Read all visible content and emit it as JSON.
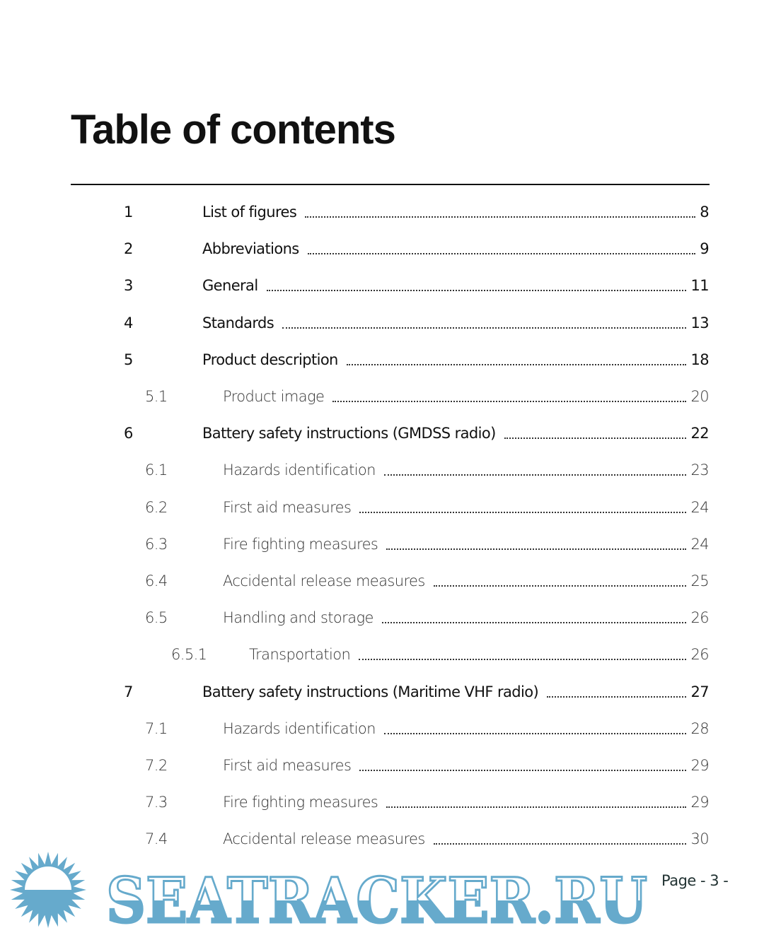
{
  "heading": "Table of contents",
  "entries": [
    {
      "num": "1",
      "title": "List of figures",
      "page": "8",
      "level": 1
    },
    {
      "num": "2",
      "title": "Abbreviations",
      "page": "9",
      "level": 1
    },
    {
      "num": "3",
      "title": "General",
      "page": "11",
      "level": 1
    },
    {
      "num": "4",
      "title": "Standards",
      "page": "13",
      "level": 1
    },
    {
      "num": "5",
      "title": "Product description",
      "page": "18",
      "level": 1
    },
    {
      "num": "5.1",
      "title": "Product image",
      "page": "20",
      "level": 2
    },
    {
      "num": "6",
      "title": "Battery safety instructions (GMDSS radio)",
      "page": "22",
      "level": 1
    },
    {
      "num": "6.1",
      "title": "Hazards identification",
      "page": "23",
      "level": 2
    },
    {
      "num": "6.2",
      "title": "First aid measures",
      "page": "24",
      "level": 2
    },
    {
      "num": "6.3",
      "title": "Fire fighting measures",
      "page": "24",
      "level": 2
    },
    {
      "num": "6.4",
      "title": "Accidental release measures",
      "page": "25",
      "level": 2
    },
    {
      "num": "6.5",
      "title": "Handling and storage",
      "page": "26",
      "level": 2
    },
    {
      "num": "6.5.1",
      "title": "Transportation",
      "page": "26",
      "level": 3
    },
    {
      "num": "7",
      "title": "Battery safety instructions (Maritime VHF radio)",
      "page": "27",
      "level": 1
    },
    {
      "num": "7.1",
      "title": "Hazards identification",
      "page": "28",
      "level": 2
    },
    {
      "num": "7.2",
      "title": "First aid measures",
      "page": "29",
      "level": 2
    },
    {
      "num": "7.3",
      "title": "Fire fighting measures",
      "page": "29",
      "level": 2
    },
    {
      "num": "7.4",
      "title": "Accidental release measures",
      "page": "30",
      "level": 2
    }
  ],
  "footer": {
    "page_label": "Page - 3 -"
  },
  "watermark": {
    "text": "SEATRACKER.RU",
    "color": "#66aacc"
  }
}
